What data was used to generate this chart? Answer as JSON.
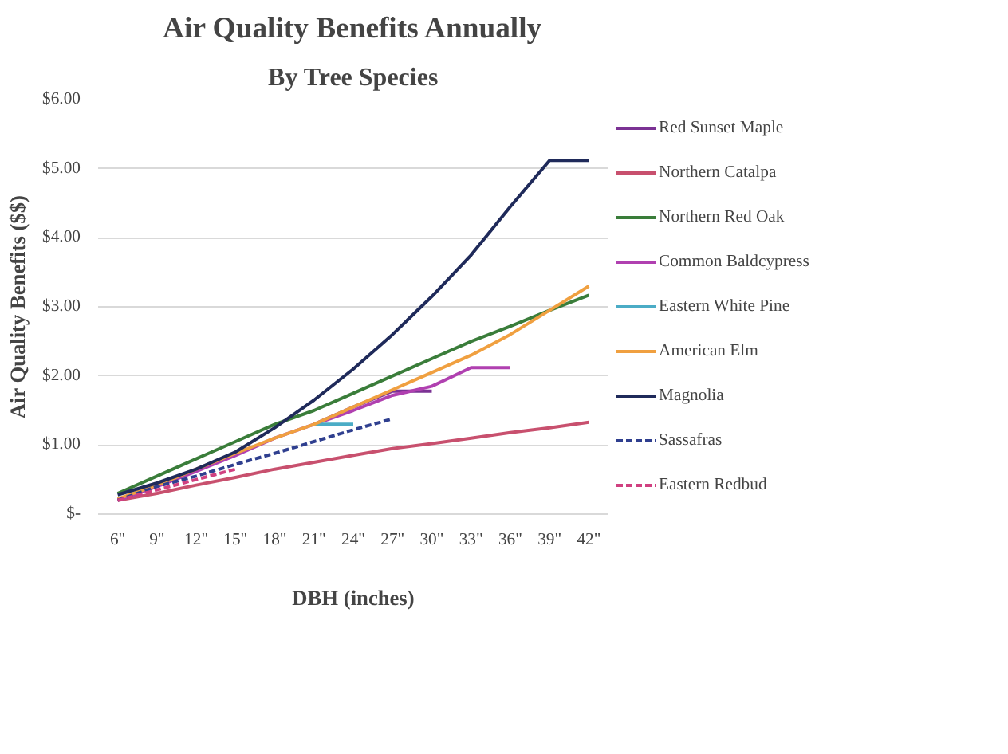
{
  "chart_data": {
    "type": "line",
    "title": "Air Quality Benefits Annually",
    "subtitle": "By Tree Species",
    "xlabel": "DBH (inches)",
    "ylabel": "Air Quality Benefits ($$)",
    "categories": [
      "6\"",
      "9\"",
      "12\"",
      "15\"",
      "18\"",
      "21\"",
      "24\"",
      "27\"",
      "30\"",
      "33\"",
      "36\"",
      "39\"",
      "42\""
    ],
    "ylim": [
      0,
      6
    ],
    "yticks": [
      {
        "value": 0,
        "label": "$-"
      },
      {
        "value": 1,
        "label": "$1.00"
      },
      {
        "value": 2,
        "label": "$2.00"
      },
      {
        "value": 3,
        "label": "$3.00"
      },
      {
        "value": 4,
        "label": "$4.00"
      },
      {
        "value": 5,
        "label": "$5.00"
      },
      {
        "value": 6,
        "label": "$6.00"
      }
    ],
    "grid": "y",
    "legend": "right",
    "marker": "none",
    "series": [
      {
        "name": "Red Sunset Maple",
        "color": "#7b3294",
        "line_style": "solid",
        "values": [
          null,
          null,
          null,
          null,
          null,
          1.3,
          1.55,
          1.78,
          1.78,
          null,
          null,
          null,
          null
        ]
      },
      {
        "name": "Northern Catalpa",
        "color": "#c8506e",
        "line_style": "solid",
        "values": [
          0.2,
          0.3,
          0.42,
          0.53,
          0.65,
          0.75,
          0.85,
          0.95,
          1.02,
          1.1,
          1.18,
          1.25,
          1.33
        ]
      },
      {
        "name": "Northern Red Oak",
        "color": "#3a7d3a",
        "line_style": "solid",
        "values": [
          0.3,
          0.55,
          0.8,
          1.05,
          1.3,
          1.5,
          1.75,
          2.0,
          2.25,
          2.5,
          2.72,
          2.95,
          3.17
        ]
      },
      {
        "name": "Common Baldcypress",
        "color": "#b040b0",
        "line_style": "solid",
        "values": [
          0.2,
          0.4,
          0.62,
          0.85,
          1.1,
          1.3,
          1.5,
          1.72,
          1.85,
          2.12,
          2.12,
          null,
          null
        ]
      },
      {
        "name": "Eastern White Pine",
        "color": "#4bacc6",
        "line_style": "solid",
        "values": [
          null,
          null,
          null,
          null,
          null,
          1.3,
          1.3,
          null,
          null,
          null,
          null,
          null,
          null
        ]
      },
      {
        "name": "American Elm",
        "color": "#f0a040",
        "line_style": "solid",
        "values": [
          0.22,
          0.42,
          0.65,
          0.88,
          1.1,
          1.3,
          1.55,
          1.8,
          2.05,
          2.3,
          2.6,
          2.95,
          3.3
        ]
      },
      {
        "name": "Magnolia",
        "color": "#1f2a5a",
        "line_style": "solid",
        "values": [
          0.28,
          0.45,
          0.65,
          0.9,
          1.25,
          1.65,
          2.1,
          2.6,
          3.15,
          3.75,
          4.45,
          5.12,
          5.12
        ]
      },
      {
        "name": "Sassafras",
        "color": "#2f3f8f",
        "line_style": "dashed",
        "values": [
          0.2,
          0.4,
          0.55,
          0.72,
          0.88,
          1.05,
          1.22,
          1.38,
          null,
          null,
          null,
          null,
          null
        ]
      },
      {
        "name": "Eastern Redbud",
        "color": "#d04080",
        "line_style": "dashed",
        "values": [
          0.2,
          0.35,
          0.5,
          0.65,
          null,
          null,
          null,
          null,
          null,
          null,
          null,
          null,
          null
        ]
      }
    ]
  }
}
